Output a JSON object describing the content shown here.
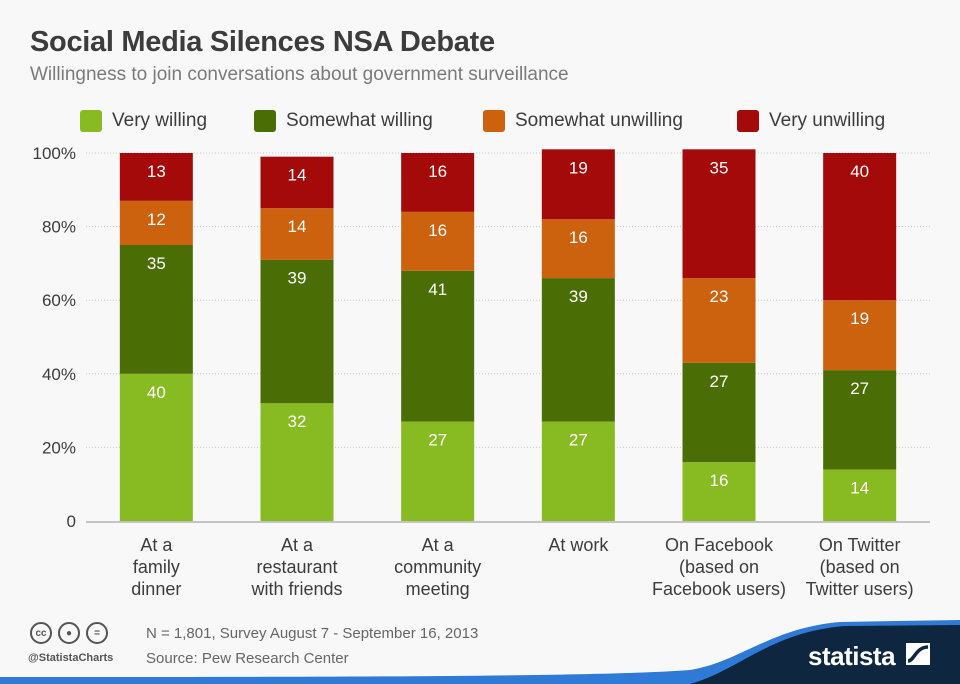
{
  "header": {
    "title": "Social Media Silences NSA Debate",
    "subtitle": "Willingness to join conversations about government surveillance"
  },
  "colors": {
    "very_willing": "#88bb22",
    "somewhat_willing": "#4a6e05",
    "somewhat_unwilling": "#cc610e",
    "very_unwilling": "#a50a0a",
    "brand_dark": "#0e2640",
    "brand_blue": "#2f7ad6"
  },
  "chart_data": {
    "type": "bar",
    "stacked": true,
    "title": "Social Media Silences NSA Debate",
    "subtitle": "Willingness to join conversations about government surveillance",
    "xlabel": "",
    "ylabel": "",
    "ylim": [
      0,
      100
    ],
    "yticks": [
      {
        "value": 0,
        "label": "0"
      },
      {
        "value": 20,
        "label": "20%"
      },
      {
        "value": 40,
        "label": "40%"
      },
      {
        "value": 60,
        "label": "60%"
      },
      {
        "value": 80,
        "label": "80%"
      },
      {
        "value": 100,
        "label": "100%"
      }
    ],
    "grid": true,
    "legend_position": "top",
    "categories": [
      [
        "At a",
        "family",
        "dinner"
      ],
      [
        "At a",
        "restaurant",
        "with friends"
      ],
      [
        "At a",
        "community",
        "meeting"
      ],
      [
        "At work"
      ],
      [
        "On Facebook",
        "(based on",
        "Facebook users)"
      ],
      [
        "On Twitter",
        "(based on",
        "Twitter users)"
      ]
    ],
    "series": [
      {
        "name": "Very willing",
        "color_key": "very_willing",
        "values": [
          40,
          32,
          27,
          27,
          16,
          14
        ]
      },
      {
        "name": "Somewhat willing",
        "color_key": "somewhat_willing",
        "values": [
          35,
          39,
          41,
          39,
          27,
          27
        ]
      },
      {
        "name": "Somewhat unwilling",
        "color_key": "somewhat_unwilling",
        "values": [
          12,
          14,
          16,
          16,
          23,
          19
        ]
      },
      {
        "name": "Very unwilling",
        "color_key": "very_unwilling",
        "values": [
          13,
          14,
          16,
          19,
          35,
          40
        ]
      }
    ]
  },
  "footer": {
    "note": "N = 1,801, Survey August 7 - September 16, 2013",
    "source": "Source: Pew Research Center",
    "handle": "@StatistaCharts",
    "cc_icons": [
      {
        "name": "cc-icon",
        "glyph": "cc"
      },
      {
        "name": "attribution-icon",
        "glyph": "●"
      },
      {
        "name": "no-derivatives-icon",
        "glyph": "="
      }
    ],
    "brand": "statista"
  }
}
